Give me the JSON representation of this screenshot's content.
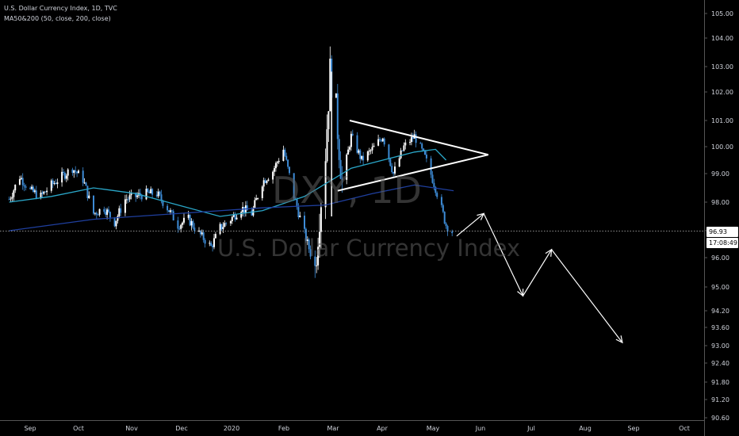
{
  "header": {
    "symbol_line": "U.S. Dollar Currency Index, 1D, TVC",
    "indicator_line": "MA50&200 (50, close, 200, close)"
  },
  "watermark": {
    "symbol": "DXY, 1D",
    "name": "U.S. Dollar Currency Index"
  },
  "price_tag": {
    "last_price": "96.93",
    "countdown": "17:08:49"
  },
  "colors": {
    "background": "#000000",
    "candle_up": "#ffffff",
    "candle_down": "#3d8bd6",
    "ma50": "#2aa7c9",
    "ma200": "#1f3f9e",
    "drawings": "#ffffff",
    "axis_text": "#d1d4dc"
  },
  "chart_data": {
    "type": "candlestick",
    "y_axis": {
      "ticks": [
        "105.00",
        "104.00",
        "103.00",
        "102.00",
        "101.00",
        "100.00",
        "99.00",
        "98.00",
        "97.00",
        "96.00",
        "95.00",
        "94.20",
        "93.60",
        "93.00",
        "92.40",
        "91.80",
        "91.20",
        "90.60"
      ],
      "scale": "log"
    },
    "x_axis": {
      "ticks": [
        "Sep",
        "Oct",
        "Nov",
        "Dec",
        "2020",
        "Feb",
        "Mar",
        "Apr",
        "May",
        "Jun",
        "Jul",
        "Aug",
        "Sep",
        "Oct"
      ]
    },
    "price_path": [
      [
        "2019-08-19",
        98.1
      ],
      [
        "2019-08-26",
        98.9
      ],
      [
        "2019-09-02",
        98.4
      ],
      [
        "2019-09-09",
        98.2
      ],
      [
        "2019-09-16",
        98.6
      ],
      [
        "2019-09-23",
        98.9
      ],
      [
        "2019-09-30",
        99.2
      ],
      [
        "2019-10-07",
        98.8
      ],
      [
        "2019-10-14",
        97.6
      ],
      [
        "2019-10-21",
        97.8
      ],
      [
        "2019-10-28",
        97.3
      ],
      [
        "2019-11-04",
        98.1
      ],
      [
        "2019-11-11",
        98.2
      ],
      [
        "2019-11-18",
        98.3
      ],
      [
        "2019-11-25",
        98.3
      ],
      [
        "2019-12-02",
        97.8
      ],
      [
        "2019-12-09",
        97.2
      ],
      [
        "2019-12-16",
        97.4
      ],
      [
        "2019-12-23",
        96.9
      ],
      [
        "2019-12-31",
        96.4
      ],
      [
        "2020-01-06",
        97.1
      ],
      [
        "2020-01-13",
        97.4
      ],
      [
        "2020-01-20",
        97.8
      ],
      [
        "2020-01-27",
        97.6
      ],
      [
        "2020-02-03",
        98.7
      ],
      [
        "2020-02-10",
        99.1
      ],
      [
        "2020-02-17",
        99.9
      ],
      [
        "2020-02-24",
        98.2
      ],
      [
        "2020-03-02",
        96.9
      ],
      [
        "2020-03-09",
        95.6
      ],
      [
        "2020-03-12",
        97.6
      ],
      [
        "2020-03-16",
        99.8
      ],
      [
        "2020-03-19",
        102.8
      ],
      [
        "2020-03-23",
        101.3
      ],
      [
        "2020-03-27",
        98.7
      ],
      [
        "2020-04-02",
        100.4
      ],
      [
        "2020-04-09",
        99.5
      ],
      [
        "2020-04-16",
        99.9
      ],
      [
        "2020-04-23",
        100.4
      ],
      [
        "2020-04-30",
        99.0
      ],
      [
        "2020-05-07",
        100.0
      ],
      [
        "2020-05-14",
        100.4
      ],
      [
        "2020-05-21",
        99.6
      ],
      [
        "2020-05-28",
        98.5
      ],
      [
        "2020-06-04",
        97.2
      ],
      [
        "2020-06-09",
        96.9
      ]
    ],
    "ohlc_sample": {
      "last_close": 96.93
    },
    "moving_averages": [
      {
        "name": "MA 50",
        "points": [
          [
            "2019-08-19",
            98.0
          ],
          [
            "2019-09-16",
            98.2
          ],
          [
            "2019-10-14",
            98.5
          ],
          [
            "2019-11-11",
            98.3
          ],
          [
            "2019-12-09",
            97.9
          ],
          [
            "2020-01-06",
            97.5
          ],
          [
            "2020-02-03",
            97.7
          ],
          [
            "2020-03-02",
            98.2
          ],
          [
            "2020-04-02",
            99.2
          ],
          [
            "2020-04-23",
            99.5
          ],
          [
            "2020-05-14",
            99.8
          ],
          [
            "2020-05-28",
            99.9
          ],
          [
            "2020-06-04",
            99.5
          ]
        ]
      },
      {
        "name": "MA 200",
        "points": [
          [
            "2019-08-19",
            97.0
          ],
          [
            "2019-10-14",
            97.4
          ],
          [
            "2019-12-09",
            97.6
          ],
          [
            "2020-02-03",
            97.8
          ],
          [
            "2020-03-16",
            97.9
          ],
          [
            "2020-04-16",
            98.3
          ],
          [
            "2020-05-14",
            98.6
          ],
          [
            "2020-06-09",
            98.4
          ]
        ]
      }
    ],
    "drawings": {
      "triangle_upper": [
        [
          "2020-04-01",
          101.0
        ],
        [
          "2020-07-02",
          99.7
        ]
      ],
      "triangle_lower": [
        [
          "2020-03-24",
          98.4
        ],
        [
          "2020-07-02",
          99.7
        ]
      ],
      "wick_line": [
        [
          "2020-03-20",
          97.5
        ],
        [
          "2020-03-20",
          102.8
        ]
      ],
      "projection_path": [
        [
          "2020-06-11",
          96.8
        ],
        [
          "2020-06-29",
          97.6
        ],
        [
          "2020-07-25",
          94.7
        ],
        [
          "2020-08-13",
          96.3
        ],
        [
          "2020-09-29",
          93.1
        ]
      ]
    }
  }
}
